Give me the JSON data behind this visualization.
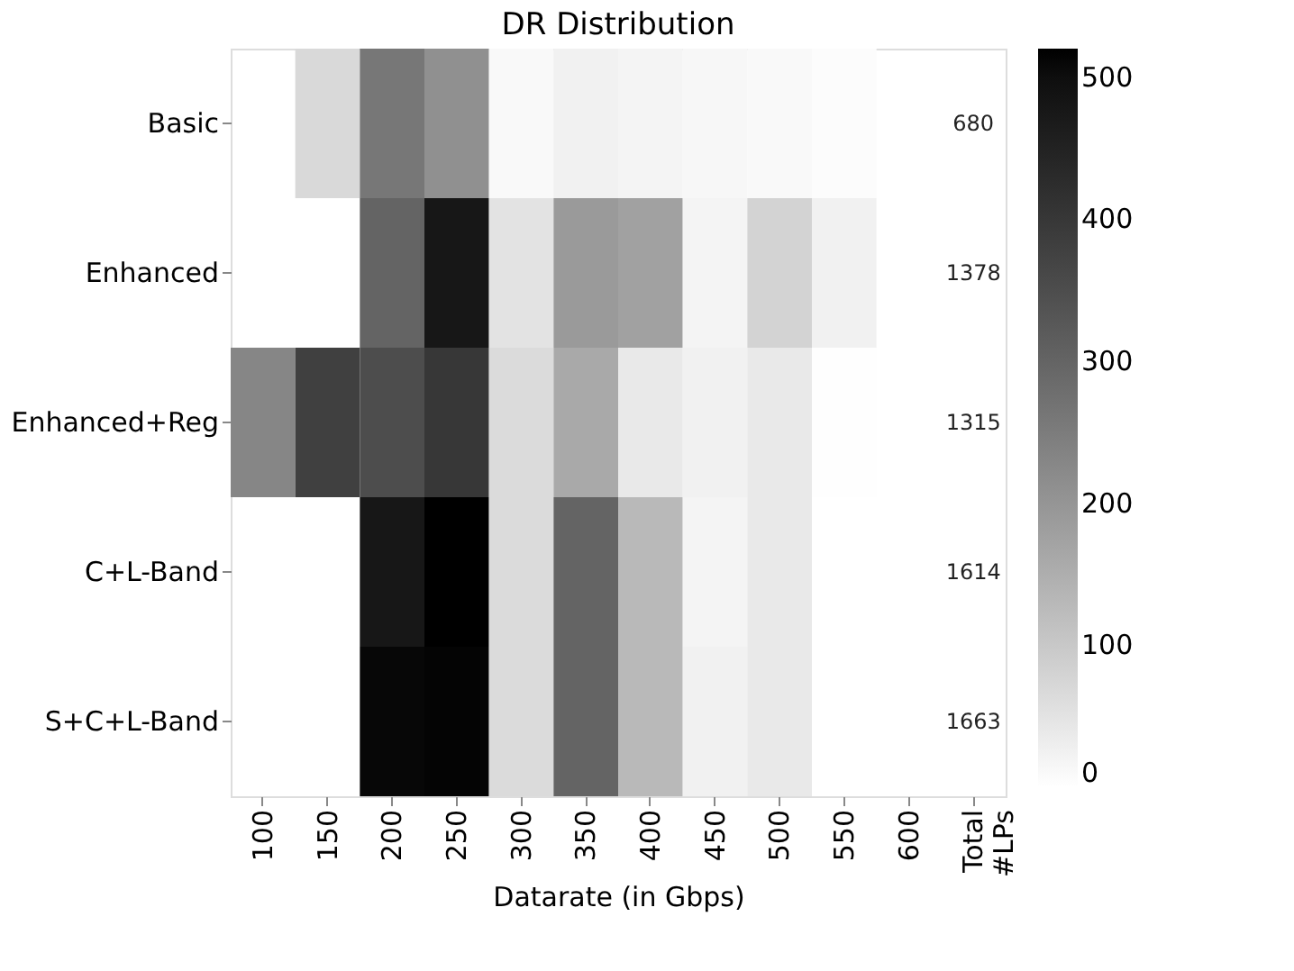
{
  "chart_data": {
    "type": "heatmap",
    "title": "DR Distribution",
    "xlabel": "Datarate (in Gbps)",
    "categories": [
      "100",
      "150",
      "200",
      "250",
      "300",
      "350",
      "400",
      "450",
      "500",
      "550",
      "600",
      "Total #LPs"
    ],
    "y_categories": [
      "Basic",
      "Enhanced",
      "Enhanced+Reg",
      "C+L-Band",
      "S+C+L-Band"
    ],
    "cells": [
      [
        null,
        70,
        260,
        210,
        10,
        25,
        20,
        15,
        10,
        5,
        null,
        null
      ],
      [
        null,
        null,
        300,
        480,
        50,
        190,
        175,
        20,
        80,
        25,
        null,
        null
      ],
      [
        230,
        380,
        350,
        400,
        65,
        160,
        40,
        25,
        40,
        2,
        null,
        null
      ],
      [
        null,
        null,
        480,
        520,
        65,
        300,
        130,
        20,
        40,
        null,
        null,
        null
      ],
      [
        null,
        null,
        510,
        515,
        65,
        300,
        130,
        25,
        40,
        null,
        null,
        null
      ]
    ],
    "cell_labels": [
      [
        null,
        null,
        null,
        null,
        null,
        null,
        null,
        null,
        null,
        null,
        null,
        "680"
      ],
      [
        null,
        null,
        null,
        null,
        null,
        null,
        null,
        null,
        null,
        null,
        null,
        "1378"
      ],
      [
        null,
        null,
        null,
        null,
        null,
        null,
        null,
        null,
        null,
        null,
        null,
        "1315"
      ],
      [
        null,
        null,
        null,
        null,
        null,
        null,
        null,
        null,
        null,
        null,
        null,
        "1614"
      ],
      [
        null,
        null,
        null,
        null,
        null,
        null,
        null,
        null,
        null,
        null,
        null,
        "1663"
      ]
    ],
    "clim": [
      0,
      520
    ],
    "cticks": [
      0,
      100,
      200,
      300,
      400,
      500
    ]
  }
}
